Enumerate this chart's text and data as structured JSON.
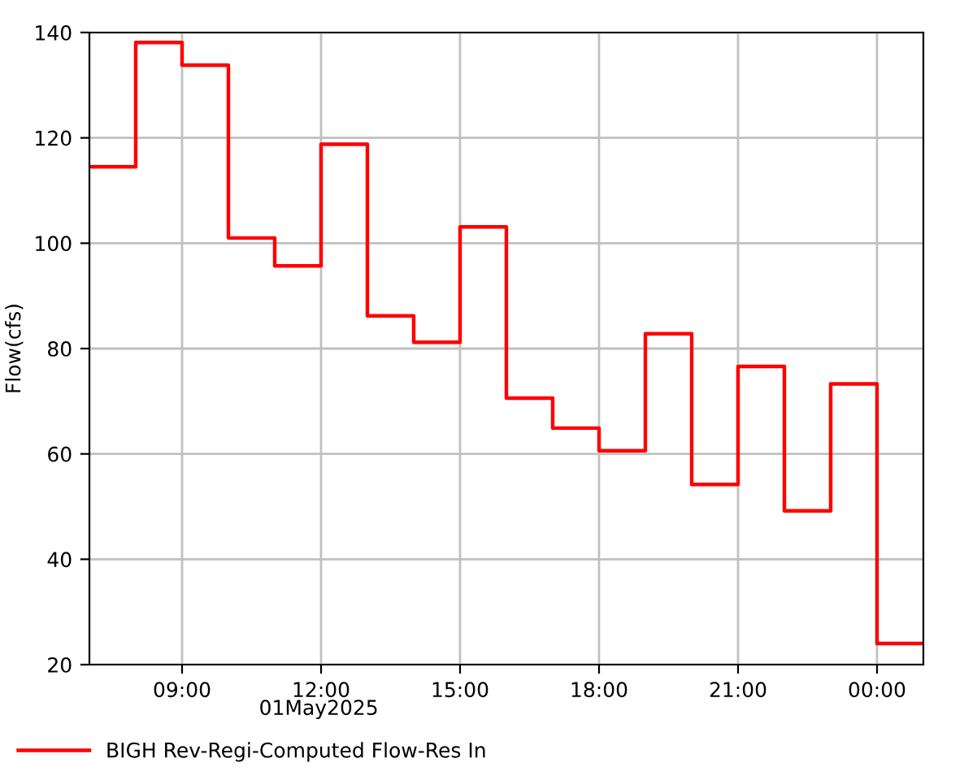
{
  "chart_data": {
    "type": "step",
    "ylabel": "Flow(cfs)",
    "x": [
      "2025-05-01T07:00",
      "2025-05-01T08:00",
      "2025-05-01T09:00",
      "2025-05-01T10:00",
      "2025-05-01T11:00",
      "2025-05-01T12:00",
      "2025-05-01T13:00",
      "2025-05-01T14:00",
      "2025-05-01T15:00",
      "2025-05-01T16:00",
      "2025-05-01T17:00",
      "2025-05-01T18:00",
      "2025-05-01T19:00",
      "2025-05-01T20:00",
      "2025-05-01T21:00",
      "2025-05-01T22:00",
      "2025-05-01T23:00",
      "2025-05-02T00:00",
      "2025-05-02T01:00"
    ],
    "series": [
      {
        "name": "BIGH Rev-Regi-Computed Flow-Res In",
        "color": "#ff0000",
        "values": [
          114.5,
          138.1,
          133.8,
          101.0,
          95.7,
          118.8,
          86.2,
          81.2,
          103.1,
          70.6,
          64.9,
          60.6,
          82.8,
          54.2,
          76.6,
          49.2,
          73.3,
          24.0,
          24.0
        ]
      }
    ],
    "xlim": [
      "2025-05-01T07:00",
      "2025-05-02T01:00"
    ],
    "xticks": [
      {
        "value": "2025-05-01T09:00",
        "label": "09:00"
      },
      {
        "value": "2025-05-01T12:00",
        "label": "12:00"
      },
      {
        "value": "2025-05-01T15:00",
        "label": "15:00"
      },
      {
        "value": "2025-05-01T18:00",
        "label": "18:00"
      },
      {
        "value": "2025-05-01T21:00",
        "label": "21:00"
      },
      {
        "value": "2025-05-02T00:00",
        "label": "00:00"
      }
    ],
    "ylim": [
      20,
      140
    ],
    "yticks": [
      20,
      40,
      60,
      80,
      100,
      120,
      140
    ],
    "annotations": [
      "01May2025"
    ],
    "grid": true,
    "legend": "bottom",
    "line_style": "solid",
    "marker": "none"
  }
}
